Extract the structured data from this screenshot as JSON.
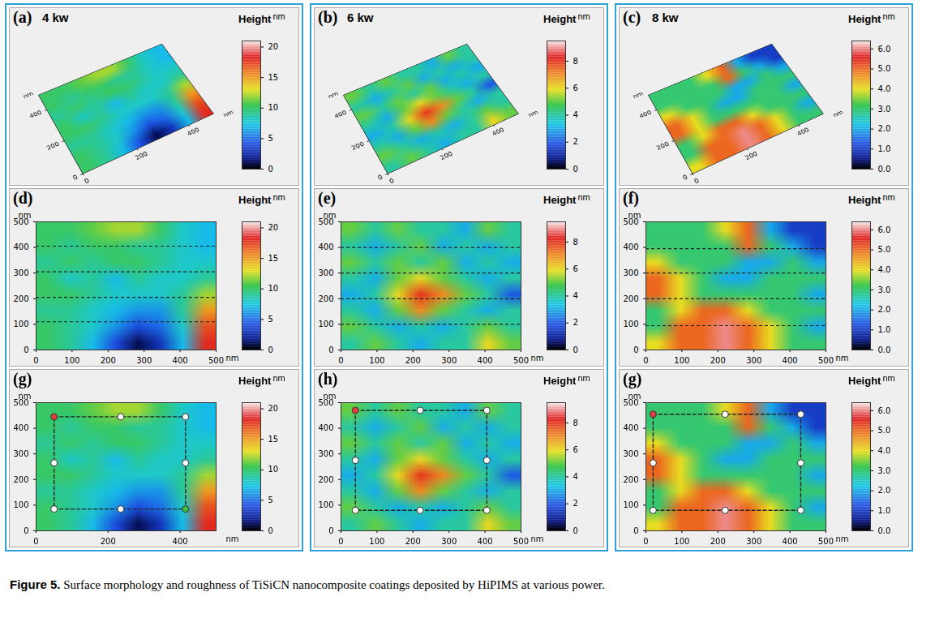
{
  "caption_label": "Figure 5.",
  "caption": "Surface morphology and roughness of TiSiCN nanocomposite coatings deposited by HiPIMS at various power.",
  "chart_data": [
    {
      "type": "surface3d",
      "panel": "(a)",
      "title": "4 kw",
      "xlim": [
        0,
        500
      ],
      "xticks": [
        0,
        200,
        400
      ],
      "ylim": [
        0,
        500
      ],
      "yticks": [
        0,
        200,
        400
      ],
      "x_unit": "nm",
      "y_unit": "nm",
      "colorbar_title": "Height",
      "colorbar_unit": "nm",
      "zlim": [
        0,
        21
      ],
      "zticks": [
        0,
        5,
        10,
        15,
        20
      ],
      "heights": [
        [
          10,
          10,
          11,
          12,
          12,
          10,
          8,
          7
        ],
        [
          10,
          9,
          10,
          10,
          9,
          9,
          8,
          7
        ],
        [
          9,
          10,
          9,
          10,
          10,
          9,
          8,
          8
        ],
        [
          10,
          8,
          9,
          7,
          9,
          8,
          8,
          9
        ],
        [
          10,
          10,
          9,
          8,
          8,
          8,
          9,
          12
        ],
        [
          9,
          9,
          8,
          7,
          6,
          6,
          9,
          15
        ],
        [
          10,
          9,
          8,
          6,
          4,
          5,
          8,
          17
        ],
        [
          10,
          9,
          7,
          4,
          1,
          3,
          7,
          18
        ]
      ]
    },
    {
      "type": "surface3d",
      "panel": "(b)",
      "title": "6 kw",
      "xlim": [
        0,
        500
      ],
      "xticks": [
        0,
        200,
        400
      ],
      "ylim": [
        0,
        500
      ],
      "yticks": [
        0,
        200,
        400
      ],
      "x_unit": "nm",
      "y_unit": "nm",
      "colorbar_title": "Height",
      "colorbar_unit": "nm",
      "zlim": [
        0,
        9.5
      ],
      "zticks": [
        0,
        2,
        4,
        6,
        8
      ],
      "heights": [
        [
          5,
          4,
          5,
          4,
          4,
          3,
          5,
          4
        ],
        [
          4,
          3,
          4,
          5,
          3,
          4,
          3,
          4
        ],
        [
          5,
          4,
          5,
          4,
          5,
          3,
          4,
          3
        ],
        [
          4,
          3,
          5,
          6,
          5,
          4,
          3,
          4
        ],
        [
          3,
          4,
          6,
          8,
          7,
          5,
          4,
          2
        ],
        [
          4,
          3,
          5,
          7,
          5,
          4,
          3,
          4
        ],
        [
          5,
          4,
          3,
          4,
          3,
          4,
          5,
          4
        ],
        [
          4,
          5,
          4,
          3,
          4,
          4,
          6,
          5
        ]
      ]
    },
    {
      "type": "surface3d",
      "panel": "(c)",
      "title": "8 kw",
      "xlim": [
        0,
        500
      ],
      "xticks": [
        0,
        200,
        400
      ],
      "ylim": [
        0,
        500
      ],
      "yticks": [
        0,
        200,
        400
      ],
      "x_unit": "nm",
      "y_unit": "nm",
      "colorbar_title": "Height",
      "colorbar_unit": "nm",
      "zlim": [
        0,
        6.4
      ],
      "zticks": [
        0,
        1,
        2,
        3,
        4,
        5,
        6
      ],
      "heights": [
        [
          3,
          3,
          3,
          4,
          5,
          2,
          1,
          1
        ],
        [
          3,
          3,
          3,
          3,
          5,
          3,
          2,
          1
        ],
        [
          4,
          3,
          3,
          3,
          2,
          2,
          3,
          2
        ],
        [
          5,
          4,
          3,
          2,
          2,
          3,
          3,
          3
        ],
        [
          5,
          4,
          3,
          3,
          3,
          3,
          3,
          2
        ],
        [
          3,
          4,
          5,
          5,
          4,
          3,
          3,
          3
        ],
        [
          3,
          5,
          5,
          6,
          5,
          4,
          3,
          2
        ],
        [
          4,
          5,
          5,
          6,
          5,
          4,
          3,
          3
        ]
      ]
    },
    {
      "type": "heatmap",
      "panel": "(d)",
      "xlim": [
        0,
        500
      ],
      "xticks": [
        0,
        100,
        200,
        300,
        400,
        500
      ],
      "ylim": [
        0,
        500
      ],
      "yticks": [
        0,
        100,
        200,
        300,
        400,
        500
      ],
      "x_unit": "nm",
      "y_unit": "nm",
      "colorbar_title": "Height",
      "colorbar_unit": "nm",
      "zlim": [
        0,
        21
      ],
      "zticks": [
        0,
        5,
        10,
        15,
        20
      ],
      "profile_y": [
        110,
        205,
        305,
        405
      ],
      "heights": [
        [
          10,
          10,
          11,
          12,
          12,
          10,
          8,
          7
        ],
        [
          10,
          9,
          10,
          10,
          9,
          9,
          8,
          7
        ],
        [
          9,
          10,
          9,
          10,
          10,
          9,
          8,
          8
        ],
        [
          10,
          8,
          9,
          7,
          9,
          8,
          8,
          9
        ],
        [
          10,
          10,
          9,
          8,
          8,
          8,
          9,
          12
        ],
        [
          9,
          9,
          8,
          7,
          6,
          6,
          9,
          15
        ],
        [
          10,
          9,
          8,
          6,
          4,
          5,
          8,
          17
        ],
        [
          10,
          9,
          7,
          4,
          1,
          3,
          7,
          18
        ]
      ]
    },
    {
      "type": "heatmap",
      "panel": "(e)",
      "xlim": [
        0,
        500
      ],
      "xticks": [
        0,
        100,
        200,
        300,
        400,
        500
      ],
      "ylim": [
        0,
        500
      ],
      "yticks": [
        0,
        100,
        200,
        300,
        400,
        500
      ],
      "x_unit": "nm",
      "y_unit": "nm",
      "colorbar_title": "Height",
      "colorbar_unit": "nm",
      "zlim": [
        0,
        9.5
      ],
      "zticks": [
        0,
        2,
        4,
        6,
        8
      ],
      "profile_y": [
        100,
        200,
        300,
        400
      ],
      "heights": [
        [
          5,
          4,
          5,
          4,
          4,
          3,
          5,
          4
        ],
        [
          4,
          3,
          4,
          5,
          3,
          4,
          3,
          4
        ],
        [
          5,
          4,
          5,
          4,
          5,
          3,
          4,
          3
        ],
        [
          4,
          3,
          5,
          6,
          5,
          4,
          3,
          4
        ],
        [
          3,
          4,
          6,
          8,
          7,
          5,
          4,
          2
        ],
        [
          4,
          3,
          5,
          7,
          5,
          4,
          3,
          4
        ],
        [
          5,
          4,
          3,
          4,
          3,
          4,
          5,
          4
        ],
        [
          4,
          5,
          4,
          3,
          4,
          4,
          6,
          5
        ]
      ]
    },
    {
      "type": "heatmap",
      "panel": "(f)",
      "xlim": [
        0,
        500
      ],
      "xticks": [
        0,
        100,
        200,
        300,
        400,
        500
      ],
      "ylim": [
        0,
        500
      ],
      "yticks": [
        0,
        100,
        200,
        300,
        400,
        500
      ],
      "x_unit": "nm",
      "y_unit": "nm",
      "colorbar_title": "Height",
      "colorbar_unit": "nm",
      "zlim": [
        0,
        6.4
      ],
      "zticks": [
        0,
        1,
        2,
        3,
        4,
        5,
        6
      ],
      "profile_y": [
        95,
        200,
        300,
        395
      ],
      "heights": [
        [
          3,
          3,
          3,
          4,
          5,
          2,
          1,
          1
        ],
        [
          3,
          3,
          3,
          3,
          5,
          3,
          2,
          1
        ],
        [
          4,
          3,
          3,
          3,
          2,
          2,
          3,
          2
        ],
        [
          5,
          4,
          3,
          2,
          2,
          3,
          3,
          3
        ],
        [
          5,
          4,
          3,
          3,
          3,
          3,
          3,
          2
        ],
        [
          3,
          4,
          5,
          5,
          4,
          3,
          3,
          3
        ],
        [
          3,
          5,
          5,
          6,
          5,
          4,
          3,
          2
        ],
        [
          4,
          5,
          5,
          6,
          5,
          4,
          3,
          3
        ]
      ]
    },
    {
      "type": "heatmap",
      "panel": "(g)",
      "xlim": [
        0,
        500
      ],
      "xticks": [
        0,
        200,
        400
      ],
      "ylim": [
        0,
        500
      ],
      "yticks": [
        0,
        100,
        200,
        300,
        400,
        500
      ],
      "x_unit": "nm",
      "y_unit": "nm",
      "colorbar_title": "Height",
      "colorbar_unit": "nm",
      "zlim": [
        0,
        21
      ],
      "zticks": [
        0,
        5,
        10,
        15,
        20
      ],
      "profile_points": [
        [
          50,
          445
        ],
        [
          235,
          445
        ],
        [
          415,
          445
        ],
        [
          415,
          265
        ],
        [
          415,
          85
        ],
        [
          235,
          85
        ],
        [
          50,
          85
        ],
        [
          50,
          265
        ]
      ],
      "point_colors": [
        "#e04040",
        "#ffffff",
        "#ffffff",
        "#ffffff",
        "#40c040",
        "#ffffff",
        "#ffffff",
        "#ffffff"
      ],
      "heights": [
        [
          10,
          10,
          11,
          12,
          12,
          10,
          8,
          7
        ],
        [
          10,
          9,
          10,
          10,
          9,
          9,
          8,
          7
        ],
        [
          9,
          10,
          9,
          10,
          10,
          9,
          8,
          8
        ],
        [
          10,
          8,
          9,
          7,
          9,
          8,
          8,
          9
        ],
        [
          10,
          10,
          9,
          8,
          8,
          8,
          9,
          12
        ],
        [
          9,
          9,
          8,
          7,
          6,
          6,
          9,
          15
        ],
        [
          10,
          9,
          8,
          6,
          4,
          5,
          8,
          17
        ],
        [
          10,
          9,
          7,
          4,
          1,
          3,
          7,
          18
        ]
      ]
    },
    {
      "type": "heatmap",
      "panel": "(h)",
      "xlim": [
        0,
        500
      ],
      "xticks": [
        0,
        100,
        200,
        300,
        400,
        500
      ],
      "ylim": [
        0,
        500
      ],
      "yticks": [
        0,
        100,
        200,
        300,
        400,
        500
      ],
      "x_unit": "nm",
      "y_unit": "nm",
      "colorbar_title": "Height",
      "colorbar_unit": "nm",
      "zlim": [
        0,
        9.5
      ],
      "zticks": [
        0,
        2,
        4,
        6,
        8
      ],
      "profile_points": [
        [
          40,
          470
        ],
        [
          220,
          470
        ],
        [
          405,
          470
        ],
        [
          405,
          275
        ],
        [
          405,
          80
        ],
        [
          220,
          80
        ],
        [
          40,
          80
        ],
        [
          40,
          275
        ]
      ],
      "point_colors": [
        "#e04040",
        "#ffffff",
        "#ffffff",
        "#ffffff",
        "#ffffff",
        "#ffffff",
        "#ffffff",
        "#ffffff"
      ],
      "heights": [
        [
          5,
          4,
          5,
          4,
          4,
          3,
          5,
          4
        ],
        [
          4,
          3,
          4,
          5,
          3,
          4,
          3,
          4
        ],
        [
          5,
          4,
          5,
          4,
          5,
          3,
          4,
          3
        ],
        [
          4,
          3,
          5,
          6,
          5,
          4,
          3,
          4
        ],
        [
          3,
          4,
          6,
          8,
          7,
          5,
          4,
          2
        ],
        [
          4,
          3,
          5,
          7,
          5,
          4,
          3,
          4
        ],
        [
          5,
          4,
          3,
          4,
          3,
          4,
          5,
          4
        ],
        [
          4,
          5,
          4,
          3,
          4,
          4,
          6,
          5
        ]
      ]
    },
    {
      "type": "heatmap",
      "panel": "(g)",
      "xlim": [
        0,
        500
      ],
      "xticks": [
        0,
        100,
        200,
        300,
        400,
        500
      ],
      "ylim": [
        0,
        500
      ],
      "yticks": [
        0,
        100,
        200,
        300,
        400,
        500
      ],
      "x_unit": "nm",
      "y_unit": "nm",
      "colorbar_title": "Height",
      "colorbar_unit": "nm",
      "zlim": [
        0,
        6.4
      ],
      "zticks": [
        0,
        1,
        2,
        3,
        4,
        5,
        6
      ],
      "profile_points": [
        [
          20,
          455
        ],
        [
          220,
          455
        ],
        [
          430,
          455
        ],
        [
          430,
          265
        ],
        [
          430,
          80
        ],
        [
          220,
          80
        ],
        [
          20,
          80
        ],
        [
          20,
          265
        ]
      ],
      "point_colors": [
        "#e04040",
        "#ffffff",
        "#ffffff",
        "#ffffff",
        "#ffffff",
        "#ffffff",
        "#ffffff",
        "#ffffff"
      ],
      "heights": [
        [
          3,
          3,
          3,
          4,
          5,
          2,
          1,
          1
        ],
        [
          3,
          3,
          3,
          3,
          5,
          3,
          2,
          1
        ],
        [
          4,
          3,
          3,
          3,
          2,
          2,
          3,
          2
        ],
        [
          5,
          4,
          3,
          2,
          2,
          3,
          3,
          3
        ],
        [
          5,
          4,
          3,
          3,
          3,
          3,
          3,
          2
        ],
        [
          3,
          4,
          5,
          5,
          4,
          3,
          3,
          3
        ],
        [
          3,
          5,
          5,
          6,
          5,
          4,
          3,
          2
        ],
        [
          4,
          5,
          5,
          6,
          5,
          4,
          3,
          3
        ]
      ]
    }
  ]
}
